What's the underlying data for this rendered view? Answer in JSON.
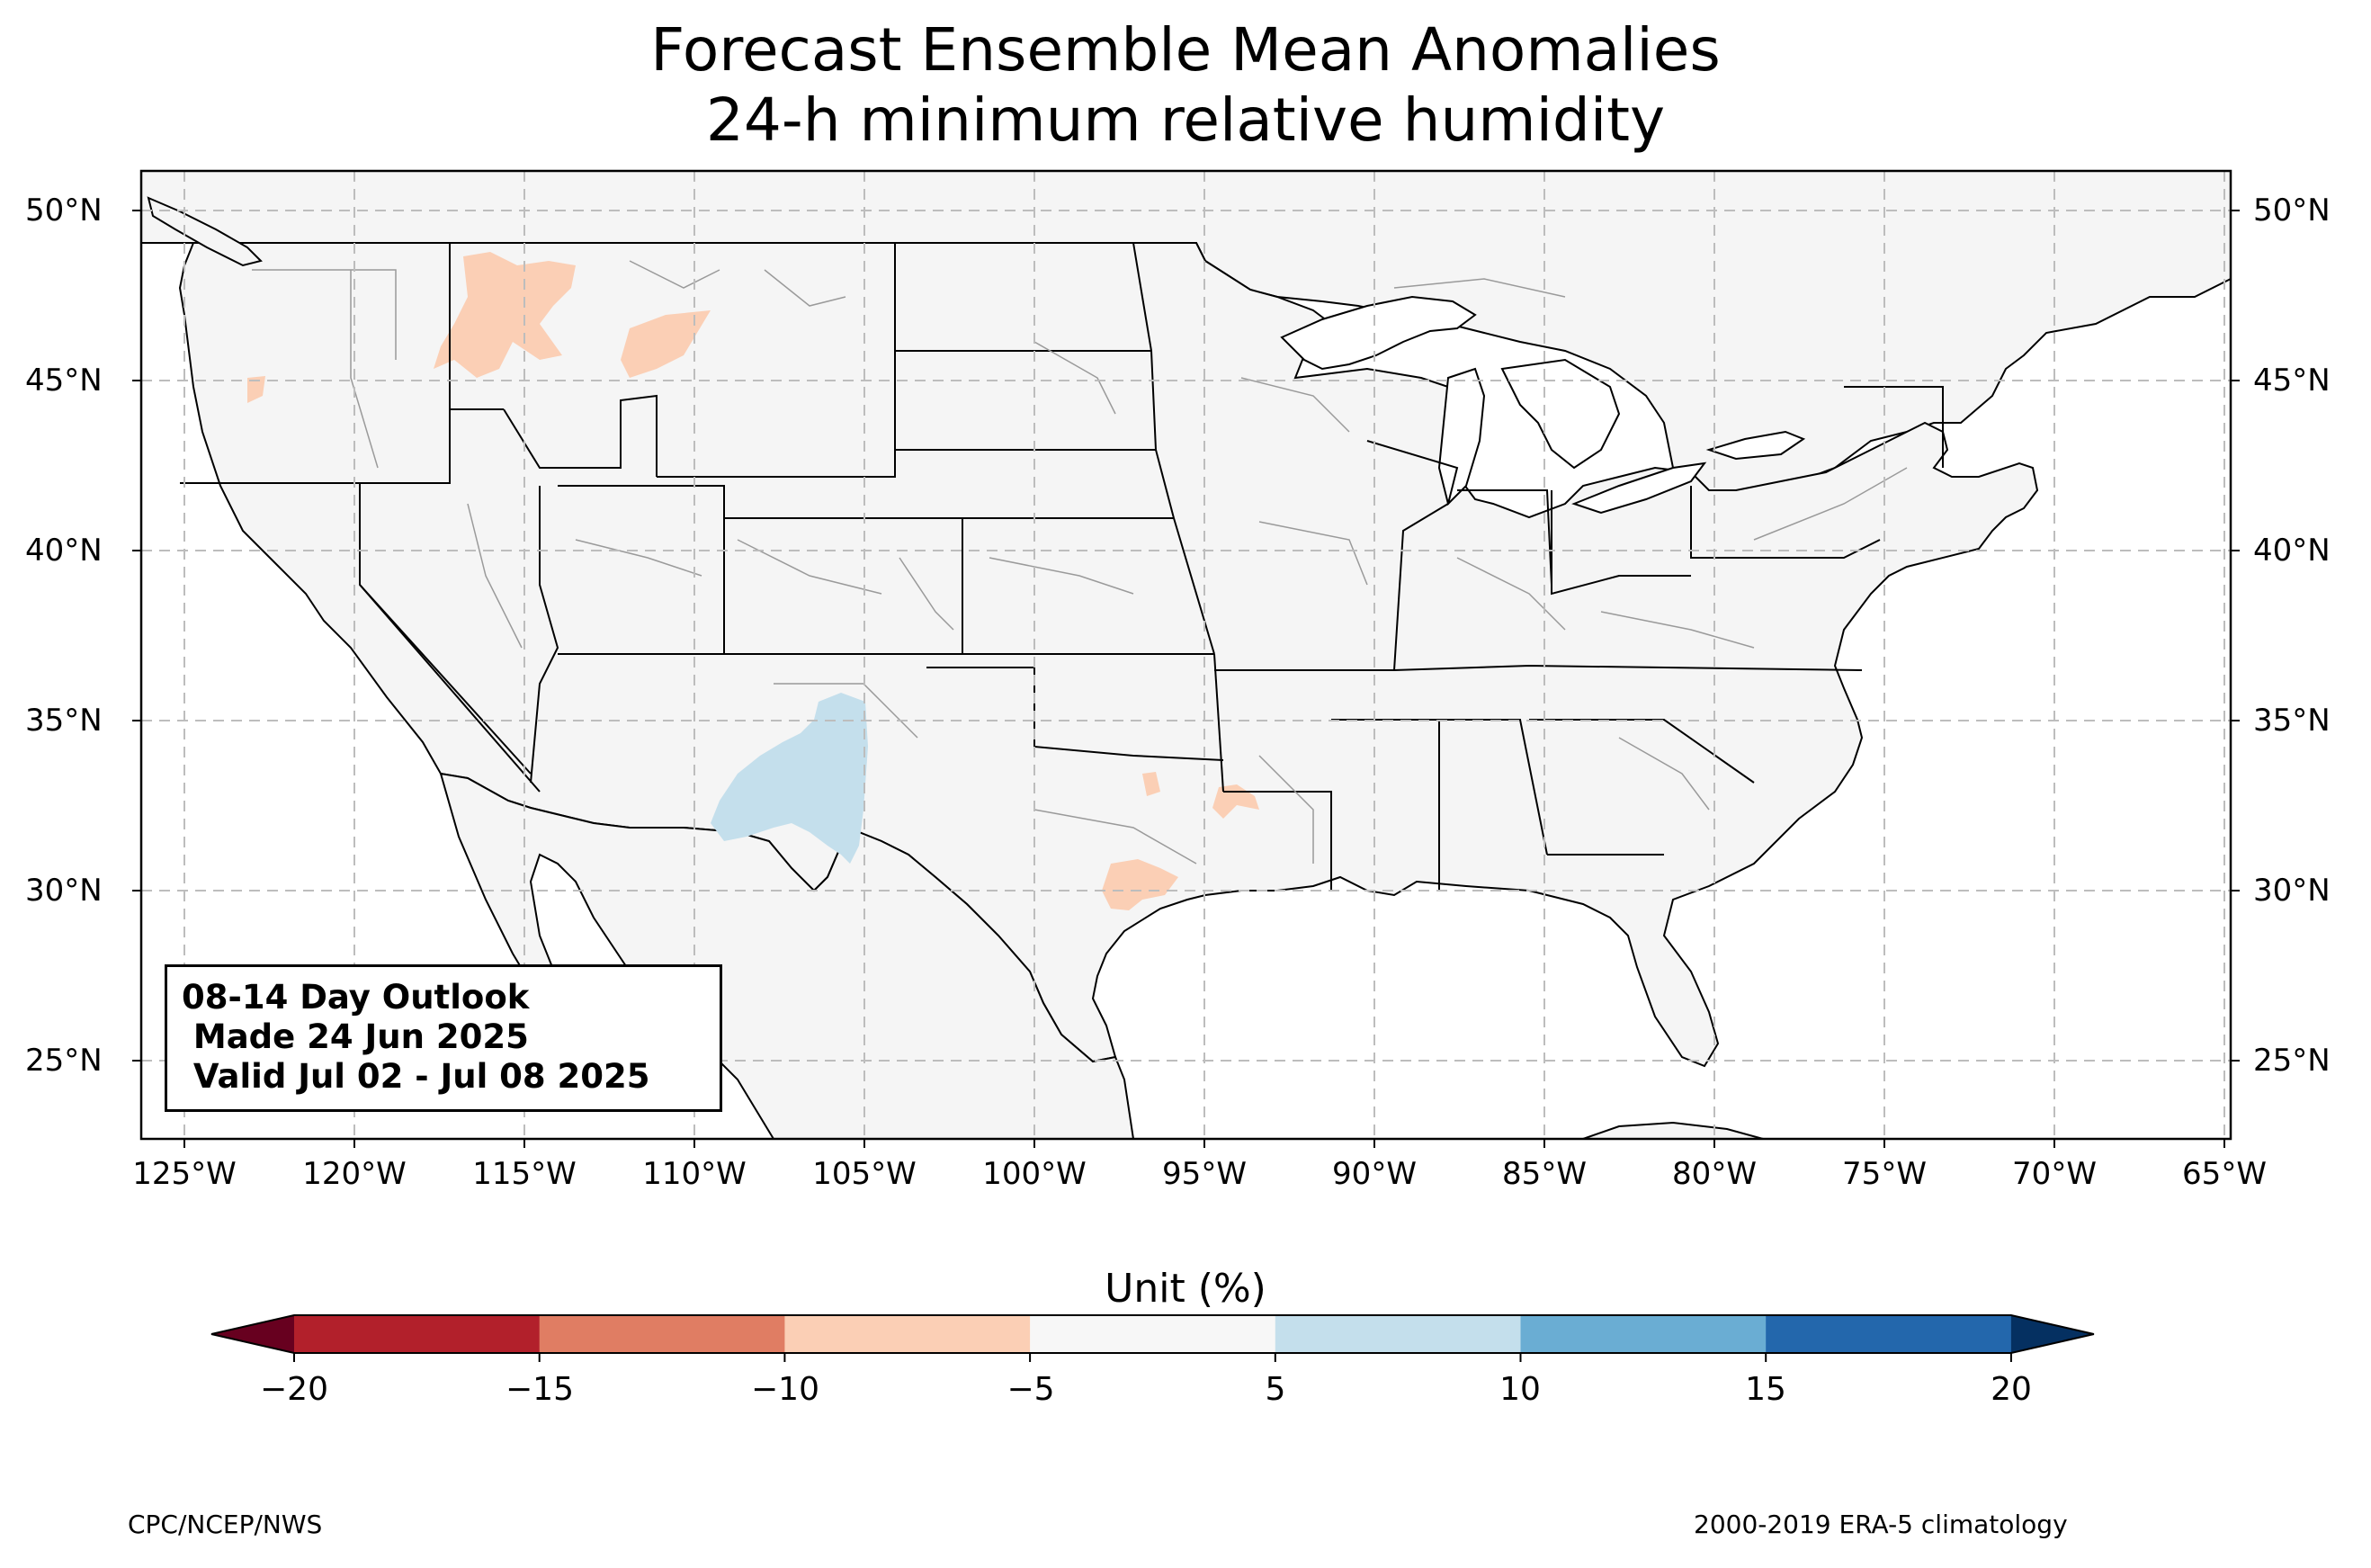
{
  "title": {
    "line1": "Forecast Ensemble Mean Anomalies",
    "line2": "24-h minimum relative humidity"
  },
  "map": {
    "lat_ticks": [
      "50°N",
      "45°N",
      "40°N",
      "35°N",
      "30°N",
      "25°N"
    ],
    "lon_ticks": [
      "125°W",
      "120°W",
      "115°W",
      "110°W",
      "105°W",
      "100°W",
      "95°W",
      "90°W",
      "85°W",
      "80°W",
      "75°W",
      "70°W",
      "65°W"
    ],
    "extent": {
      "lon": [
        -126.3,
        -64.8
      ],
      "lat": [
        22.8,
        51.2
      ]
    },
    "grid": "dashed gray",
    "land_color": "#f5f5f5",
    "anomaly_regions": [
      {
        "area": "Northern Idaho / western Montana",
        "range": "-10 to -5",
        "color": "#fbcfb5"
      },
      {
        "area": "Western Montana (east)",
        "range": "-10 to -5",
        "color": "#fbcfb5"
      },
      {
        "area": "Western Oregon",
        "range": "-10 to -5",
        "color": "#fbcfb5"
      },
      {
        "area": "Central Texas",
        "range": "-10 to -5",
        "color": "#fbcfb5"
      },
      {
        "area": "East Texas / Louisiana border",
        "range": "-10 to -5",
        "color": "#fbcfb5"
      },
      {
        "area": "Southern New Mexico",
        "range": "5 to 10",
        "color": "#c4dfec"
      }
    ]
  },
  "infobox": {
    "line1": "08-14 Day Outlook",
    "line2": " Made 24 Jun 2025",
    "line3": " Valid Jul 02 - Jul 08 2025"
  },
  "colorbar": {
    "label": "Unit (%)",
    "ticks": [
      "−20",
      "−15",
      "−10",
      "−5",
      "5",
      "10",
      "15",
      "20"
    ],
    "colors": [
      "#67001f",
      "#b2202b",
      "#e07d63",
      "#fbcfb5",
      "#f7f7f7",
      "#c4dfec",
      "#6aadd3",
      "#2367ac",
      "#053061"
    ],
    "extend": "both"
  },
  "credits": {
    "left": "CPC/NCEP/NWS",
    "right": "2000-2019 ERA-5 climatology"
  }
}
